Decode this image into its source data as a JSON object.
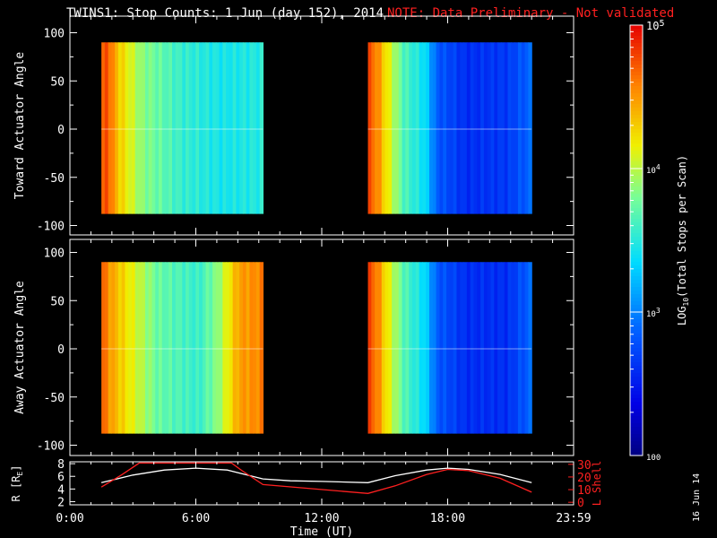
{
  "header": {
    "title": "TWINS1: Stop Counts:  1 Jun (day 152), 2014",
    "note": "NOTE: Data Preliminary - Not validated"
  },
  "side_date": "16 Jun 14",
  "chart_data": [
    {
      "type": "heatmap",
      "title": "",
      "ylabel": "Toward Actuator Angle",
      "xlabel": "",
      "ylim": [
        -110,
        110
      ],
      "yticks": [
        "100",
        "50",
        "0",
        "-50",
        "-100"
      ],
      "grid": false,
      "data_blocks": [
        {
          "x_start_hours": 1.5,
          "x_end_hours": 9.2,
          "angle_range": [
            -88,
            90
          ],
          "trend": "decreasing from ~2e4 to ~2e3"
        },
        {
          "x_start_hours": 14.2,
          "x_end_hours": 22.0,
          "angle_range": [
            -88,
            90
          ],
          "trend": "decreasing from ~2e4 to ~2.5e2"
        }
      ]
    },
    {
      "type": "heatmap",
      "title": "",
      "ylabel": "Away Actuator Angle",
      "xlabel": "",
      "ylim": [
        -110,
        110
      ],
      "yticks": [
        "100",
        "50",
        "0",
        "-50",
        "-100"
      ],
      "grid": false,
      "data_blocks": [
        {
          "x_start_hours": 1.5,
          "x_end_hours": 9.2,
          "angle_range": [
            -88,
            90
          ],
          "trend": "decreasing then increasing (~2e4 to ~2e3 to ~2e4)"
        },
        {
          "x_start_hours": 14.2,
          "x_end_hours": 22.0,
          "angle_range": [
            -88,
            90
          ],
          "trend": "decreasing from ~2e4 to ~2.5e2"
        }
      ]
    },
    {
      "type": "line",
      "title": "",
      "xlabel": "Time (UT)",
      "ylabel": "R [R",
      "ylabel_sub": "E",
      "ylabel_close": "]",
      "ylabel_right": "L Shell",
      "xlim": [
        0,
        24
      ],
      "ylim": [
        2,
        8
      ],
      "ylim_right": [
        0,
        30
      ],
      "xticks": [
        "0:00",
        "6:00",
        "12:00",
        "18:00",
        "23:59"
      ],
      "yticks": [
        "2",
        "4",
        "6",
        "8"
      ],
      "yticks_right": [
        "0",
        "10",
        "20",
        "30"
      ],
      "series": [
        {
          "name": "R",
          "color": "#ffffff",
          "x": [
            1.5,
            3,
            4.5,
            6,
            7.5,
            9.2,
            10.5,
            12,
            14.2,
            15.5,
            17,
            18,
            19,
            20.5,
            22
          ],
          "y": [
            5.0,
            6.2,
            7.0,
            7.3,
            7.0,
            5.6,
            5.3,
            5.2,
            5.0,
            6.1,
            7.0,
            7.3,
            7.1,
            6.3,
            5.0
          ]
        },
        {
          "name": "L Shell",
          "color": "#ff2020",
          "x": [
            1.5,
            2.5,
            3.3,
            7.7,
            8.2,
            9.2,
            14.2,
            15.5,
            17,
            18,
            19,
            20.5,
            22
          ],
          "y": [
            12,
            22,
            31,
            31,
            25,
            14,
            7,
            13,
            22,
            26,
            25,
            19,
            8
          ]
        }
      ]
    },
    {
      "type": "heatmap",
      "title": "",
      "colorbar": true,
      "ylabel": "LOG",
      "ylabel_sub": "10",
      "ylabel_rest": "(Total Stops per Scan)",
      "ticks": [
        {
          "base": "10",
          "exp": "5",
          "value": 100000
        },
        {
          "base": "10",
          "exp": "4",
          "value": 10000
        },
        {
          "base": "10",
          "exp": "3",
          "value": 1000
        },
        {
          "label": "100",
          "value": 100
        }
      ],
      "scale": "log",
      "range": [
        100,
        100000
      ]
    }
  ]
}
